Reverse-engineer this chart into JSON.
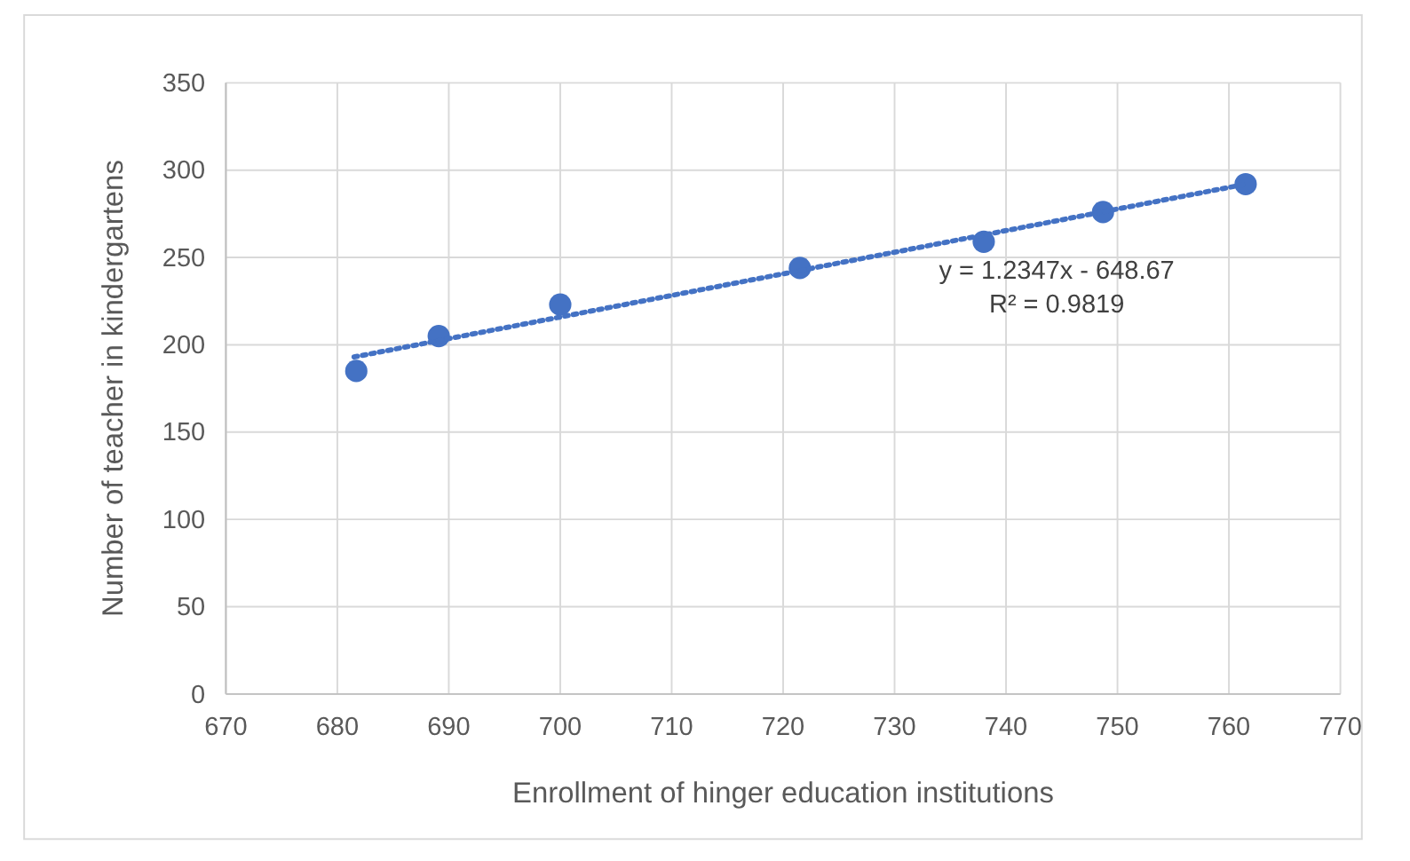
{
  "chart_data": {
    "type": "scatter",
    "xlabel": "Enrollment of hinger education institutions",
    "ylabel": "Number of teacher in kindergartens",
    "xlim": [
      670,
      770
    ],
    "xticks": [
      670,
      680,
      690,
      700,
      710,
      720,
      730,
      740,
      750,
      760,
      770
    ],
    "ylim": [
      0,
      350
    ],
    "yticks": [
      0,
      50,
      100,
      150,
      200,
      250,
      300,
      350
    ],
    "grid": true,
    "series": [
      {
        "color": "#4472c4",
        "marker": "circle",
        "x": [
          681.7,
          689.1,
          700.0,
          721.5,
          738.0,
          748.7,
          761.5
        ],
        "values": [
          185,
          205,
          223,
          244,
          259,
          276,
          292
        ]
      },
      {
        "type": "line",
        "color": "#4472c4",
        "line_style": "dotted",
        "x": [
          681.5,
          761.5
        ],
        "values": [
          193,
          292
        ]
      }
    ],
    "annotations": [
      "y = 1.2347x - 648.67",
      "R² = 0.9819"
    ]
  }
}
